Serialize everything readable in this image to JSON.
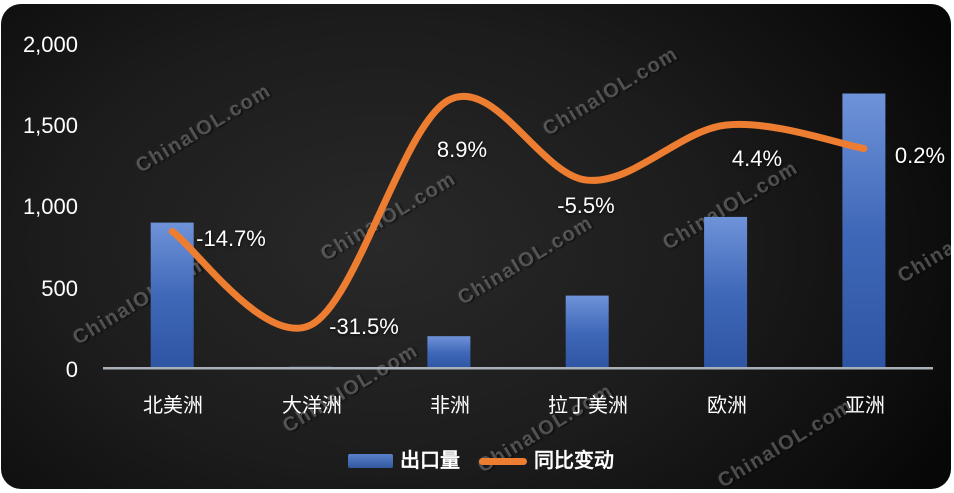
{
  "watermark_text": "ChinaIOL.com",
  "colors": {
    "bar_blue": "#4472C4",
    "bar_blue_light": "#6f93d9",
    "bar_blue_dark": "#2e55a3",
    "line_orange": "#ED7D31",
    "axis_line": "#aab0b8",
    "text_white": "#ffffff"
  },
  "chart_data": {
    "type": "bar",
    "subtype": "combo-bar-line",
    "categories": [
      "北美洲",
      "大洋洲",
      "非洲",
      "拉丁美洲",
      "欧洲",
      "亚洲"
    ],
    "series": [
      {
        "name": "出口量",
        "type": "bar",
        "values": [
          900,
          12,
          200,
          450,
          935,
          1695
        ],
        "color": "#4472C4"
      },
      {
        "name": "同比变动",
        "type": "line",
        "values_pct": [
          -14.7,
          -31.5,
          8.9,
          -5.5,
          4.4,
          0.2
        ],
        "labels": [
          "-14.7%",
          "-31.5%",
          "8.9%",
          "-5.5%",
          "4.4%",
          "0.2%"
        ],
        "color": "#ED7D31"
      }
    ],
    "title": "",
    "xlabel": "",
    "ylabel": "",
    "y_axis": {
      "tick_labels": [
        "2,000",
        "1,500",
        "1,000",
        "500",
        "0"
      ],
      "tick_values": [
        2000,
        1500,
        1000,
        500,
        0
      ],
      "min": 0,
      "max": 2000
    },
    "grid": false,
    "legend_position": "bottom",
    "label_offsets": [
      {
        "x": 58,
        "y": 4
      },
      {
        "x": 52,
        "y": -2
      },
      {
        "x": 12,
        "y": 46
      },
      {
        "x": -2,
        "y": 22
      },
      {
        "x": 30,
        "y": 30
      },
      {
        "x": 55,
        "y": 4
      }
    ]
  }
}
